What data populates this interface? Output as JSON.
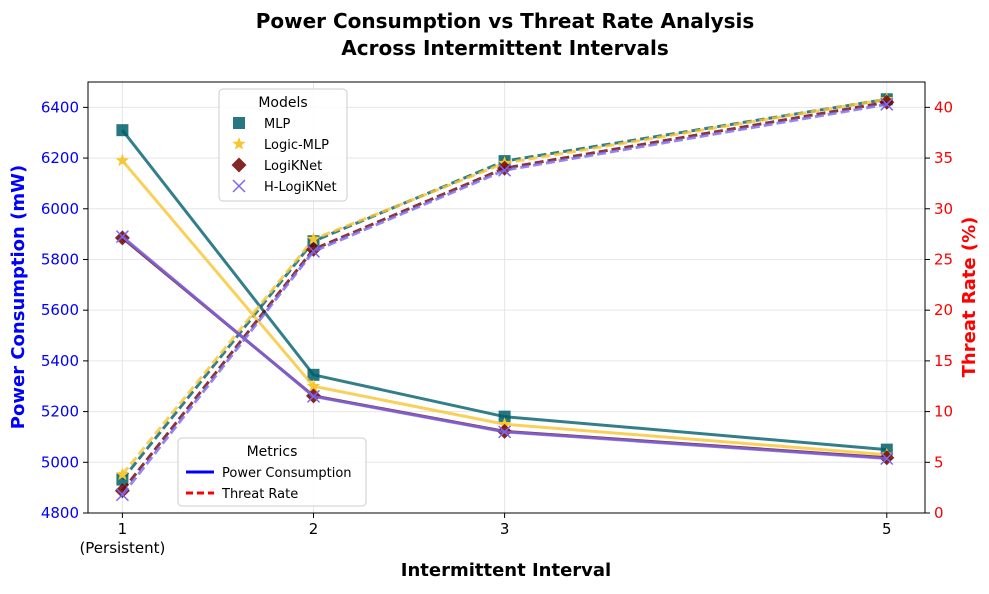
{
  "chart_data": {
    "type": "line",
    "title_line1": "Power Consumption vs Threat Rate Analysis",
    "title_line2": "Across Intermittent Intervals",
    "xlabel": "Intermittent Interval",
    "ylabel_left": "Power Consumption (mW)",
    "ylabel_right": "Threat Rate (%)",
    "x": [
      1,
      2,
      3,
      5
    ],
    "x_tick_labels": [
      "1",
      "2",
      "3",
      "5"
    ],
    "x_tick_sublabel": "(Persistent)",
    "xlim": [
      0.82,
      5.2
    ],
    "ylim_left": [
      4800,
      6500
    ],
    "y_ticks_left": [
      4800,
      5000,
      5200,
      5400,
      5600,
      5800,
      6000,
      6200,
      6400
    ],
    "ylim_right": [
      0,
      42.5
    ],
    "y_ticks_right": [
      0,
      5,
      10,
      15,
      20,
      25,
      30,
      35,
      40
    ],
    "grid": true,
    "colors": {
      "left_axis": "#0000ff",
      "right_axis": "#ff0000"
    },
    "series": [
      {
        "name": "MLP",
        "color": "#005f6b",
        "marker": "square",
        "power": [
          6310,
          5345,
          5180,
          5050
        ],
        "threat": [
          3.3,
          26.8,
          34.7,
          40.8
        ]
      },
      {
        "name": "Logic-MLP",
        "color": "#f7c631",
        "marker": "star",
        "power": [
          6190,
          5300,
          5150,
          5030
        ],
        "threat": [
          3.8,
          27.0,
          34.5,
          40.8
        ]
      },
      {
        "name": "LogiKNet",
        "color": "#6e0000",
        "marker": "diamond",
        "power": [
          5885,
          5262,
          5122,
          5018
        ],
        "threat": [
          2.2,
          26.0,
          34.0,
          40.5
        ]
      },
      {
        "name": "H-LogiKNet",
        "color": "#7b68ee",
        "marker": "x",
        "power": [
          5890,
          5260,
          5120,
          5015
        ],
        "threat": [
          1.8,
          25.8,
          33.8,
          40.3
        ]
      }
    ],
    "legend_models": {
      "title": "Models",
      "placement": "upper-left"
    },
    "legend_metrics": {
      "title": "Metrics",
      "placement": "lower-left",
      "entries": [
        {
          "label": "Power Consumption",
          "style": "solid",
          "color": "#0000ff"
        },
        {
          "label": "Threat Rate",
          "style": "dashed",
          "color": "#ff0000"
        }
      ]
    }
  }
}
